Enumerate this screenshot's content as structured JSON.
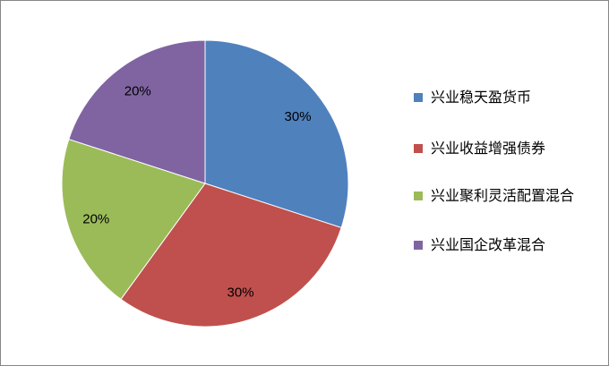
{
  "chart_data": {
    "type": "pie",
    "categories": [
      "兴业稳天盈货币",
      "兴业收益增强债券",
      "兴业聚利灵活配置混合",
      "兴业国企改革混合"
    ],
    "values": [
      30,
      30,
      20,
      20
    ],
    "data_labels": [
      "30%",
      "30%",
      "20%",
      "20%"
    ],
    "colors": [
      "#4F81BD",
      "#C0504D",
      "#9BBB59",
      "#8064A2"
    ],
    "start_angle": "top, clockwise",
    "legend_position": "right"
  }
}
